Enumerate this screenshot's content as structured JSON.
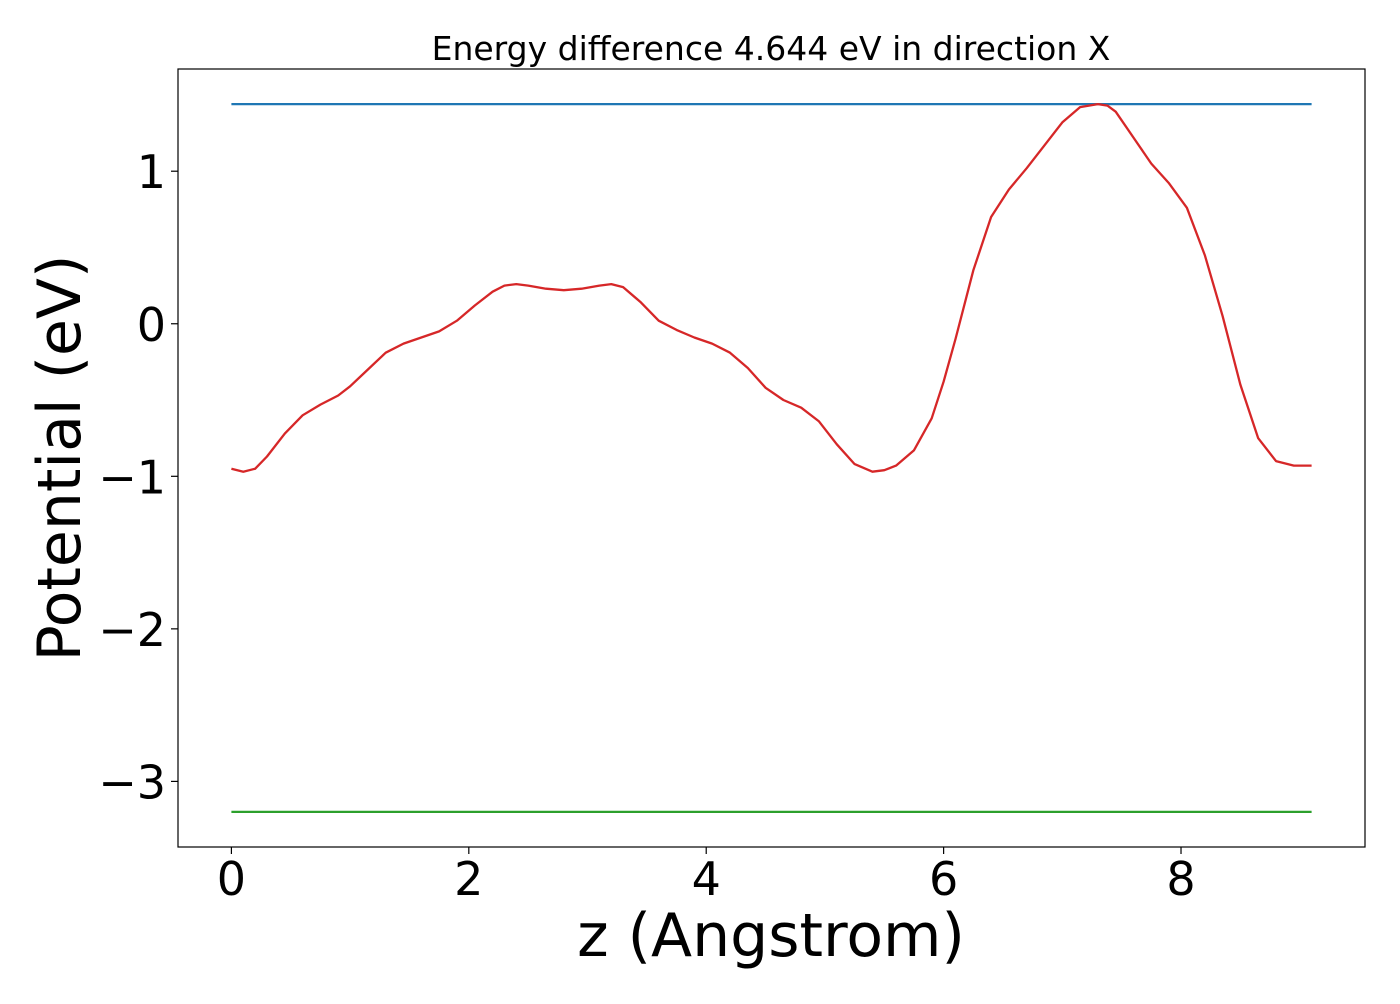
{
  "chart_data": {
    "type": "line",
    "title": "Energy difference 4.644 eV in direction X",
    "xlabel": "z (Angstrom)",
    "ylabel": "Potential (eV)",
    "xlim": [
      -0.45,
      9.55
    ],
    "ylim": [
      -3.43,
      1.67
    ],
    "x_ticks": [
      {
        "value": 0,
        "label": "0"
      },
      {
        "value": 2,
        "label": "2"
      },
      {
        "value": 4,
        "label": "4"
      },
      {
        "value": 6,
        "label": "6"
      },
      {
        "value": 8,
        "label": "8"
      }
    ],
    "y_ticks": [
      {
        "value": -3,
        "label": "−3"
      },
      {
        "value": -2,
        "label": "−2"
      },
      {
        "value": -1,
        "label": "−1"
      },
      {
        "value": 0,
        "label": "0"
      },
      {
        "value": 1,
        "label": "1"
      }
    ],
    "grid": false,
    "legend": null,
    "series": [
      {
        "color": "#1f77b4",
        "x": [
          0,
          9.1
        ],
        "y": [
          1.44,
          1.44
        ]
      },
      {
        "color": "#2ca02c",
        "x": [
          0,
          9.1
        ],
        "y": [
          -3.2,
          -3.2
        ]
      },
      {
        "color": "#d62728",
        "x": [
          0,
          0.1,
          0.2,
          0.3,
          0.45,
          0.6,
          0.75,
          0.9,
          1.0,
          1.15,
          1.3,
          1.45,
          1.6,
          1.75,
          1.9,
          2.05,
          2.2,
          2.3,
          2.4,
          2.5,
          2.65,
          2.8,
          2.95,
          3.1,
          3.2,
          3.3,
          3.45,
          3.6,
          3.75,
          3.9,
          4.05,
          4.2,
          4.35,
          4.5,
          4.65,
          4.8,
          4.95,
          5.1,
          5.25,
          5.4,
          5.5,
          5.6,
          5.75,
          5.9,
          6.0,
          6.1,
          6.25,
          6.4,
          6.55,
          6.7,
          6.85,
          7.0,
          7.15,
          7.3,
          7.38,
          7.45,
          7.6,
          7.75,
          7.9,
          8.05,
          8.2,
          8.35,
          8.5,
          8.65,
          8.8,
          8.95,
          9.1
        ],
        "y": [
          -0.95,
          -0.97,
          -0.95,
          -0.87,
          -0.72,
          -0.6,
          -0.53,
          -0.47,
          -0.41,
          -0.3,
          -0.19,
          -0.13,
          -0.09,
          -0.05,
          0.02,
          0.12,
          0.21,
          0.25,
          0.26,
          0.25,
          0.23,
          0.22,
          0.23,
          0.25,
          0.26,
          0.24,
          0.14,
          0.02,
          -0.04,
          -0.09,
          -0.13,
          -0.19,
          -0.29,
          -0.42,
          -0.5,
          -0.55,
          -0.64,
          -0.79,
          -0.92,
          -0.97,
          -0.96,
          -0.93,
          -0.83,
          -0.62,
          -0.38,
          -0.1,
          0.35,
          0.7,
          0.88,
          1.02,
          1.17,
          1.32,
          1.42,
          1.44,
          1.43,
          1.39,
          1.22,
          1.05,
          0.92,
          0.76,
          0.45,
          0.05,
          -0.4,
          -0.75,
          -0.9,
          -0.93,
          -0.93
        ]
      }
    ]
  }
}
